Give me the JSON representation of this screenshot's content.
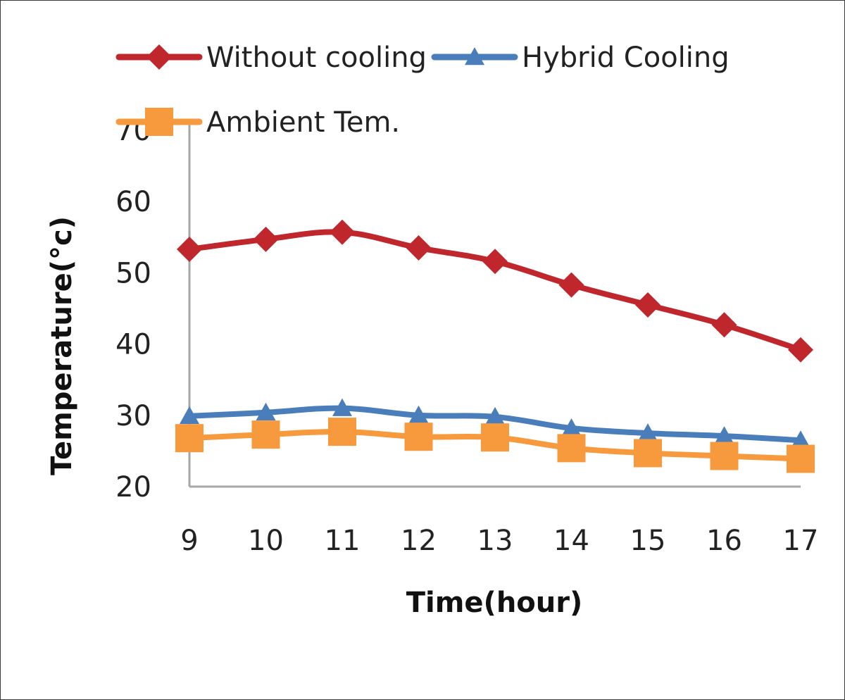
{
  "chart_data": {
    "type": "line",
    "title": "",
    "xlabel": "Time(hour)",
    "ylabel": "Temperature(°c)",
    "x": [
      9,
      10,
      11,
      12,
      13,
      14,
      15,
      16,
      17
    ],
    "categories": [
      "9",
      "10",
      "11",
      "12",
      "13",
      "14",
      "15",
      "16",
      "17"
    ],
    "ylim": [
      20,
      70
    ],
    "yticks": [
      "20",
      "30",
      "40",
      "50",
      "60",
      "70"
    ],
    "grid": false,
    "legend_position": "top",
    "series": [
      {
        "name": "Without cooling",
        "color": "#C0272D",
        "marker": "diamond",
        "values": [
          53.3,
          54.7,
          55.7,
          53.5,
          51.6,
          48.3,
          45.5,
          42.7,
          39.2
        ]
      },
      {
        "name": "Hybrid Cooling",
        "color": "#4A7EBB",
        "marker": "triangle",
        "values": [
          29.9,
          30.4,
          31.0,
          30.0,
          29.8,
          28.2,
          27.5,
          27.1,
          26.5
        ]
      },
      {
        "name": "Ambient Tem.",
        "color": "#F79A3E",
        "marker": "square",
        "values": [
          26.8,
          27.3,
          27.7,
          27.0,
          26.9,
          25.4,
          24.7,
          24.3,
          23.9
        ]
      }
    ]
  }
}
